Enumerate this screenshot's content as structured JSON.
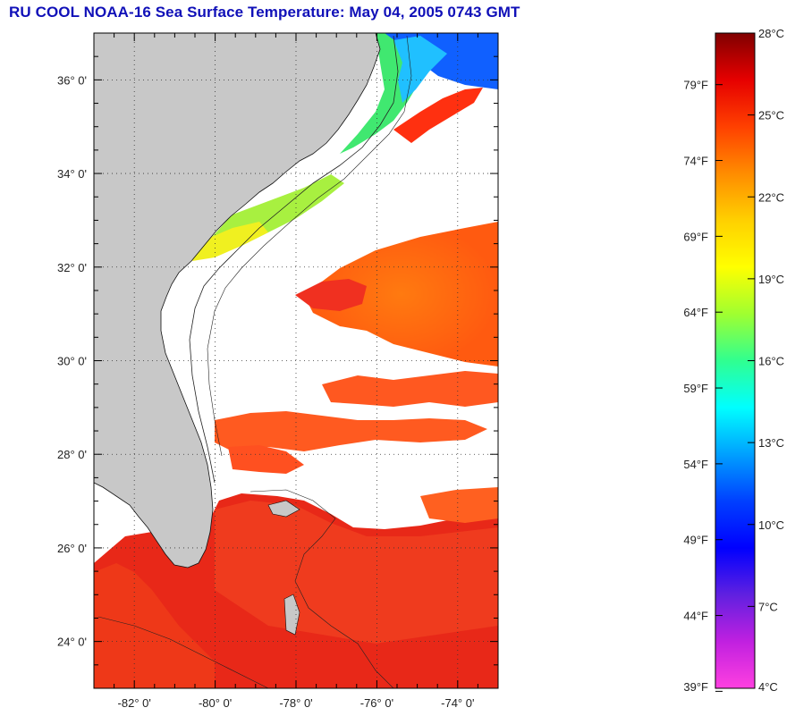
{
  "title": "RU COOL  NOAA-16  Sea Surface Temperature:  May 04, 2005 0743 GMT",
  "map": {
    "lon_range": [
      -83,
      -73
    ],
    "lat_range": [
      23,
      37
    ],
    "lat_ticks": [
      {
        "value": 36,
        "label": "36° 0'"
      },
      {
        "value": 34,
        "label": "34° 0'"
      },
      {
        "value": 32,
        "label": "32° 0'"
      },
      {
        "value": 30,
        "label": "30° 0'"
      },
      {
        "value": 28,
        "label": "28° 0'"
      },
      {
        "value": 26,
        "label": "26° 0'"
      },
      {
        "value": 24,
        "label": "24° 0'"
      }
    ],
    "lon_ticks": [
      {
        "value": -82,
        "label": "-82° 0'"
      },
      {
        "value": -80,
        "label": "-80° 0'"
      },
      {
        "value": -78,
        "label": "-78° 0'"
      },
      {
        "value": -76,
        "label": "-76° 0'"
      },
      {
        "value": -74,
        "label": "-74° 0'"
      }
    ],
    "grid": "dotted",
    "land_color": "#c8c8c8",
    "cloud_color": "#ffffff"
  },
  "colorbar": {
    "range_c": [
      4,
      28
    ],
    "celsius_ticks": [
      "28°C",
      "25°C",
      "22°C",
      "19°C",
      "16°C",
      "13°C",
      "10°C",
      "7°C",
      "4°C"
    ],
    "fahrenheit_ticks": [
      "79°F",
      "74°F",
      "69°F",
      "64°F",
      "59°F",
      "54°F",
      "49°F",
      "44°F",
      "39°F"
    ],
    "fahrenheit_values": [
      79,
      74,
      69,
      64,
      59,
      54,
      49,
      44,
      39
    ],
    "colors_top_to_bottom": [
      "#800000",
      "#e60000",
      "#ff4000",
      "#ff8c00",
      "#ffd000",
      "#ffff00",
      "#a0ff30",
      "#30ff90",
      "#00ffff",
      "#00a0ff",
      "#0040ff",
      "#0000ff",
      "#6020e0",
      "#c020e0",
      "#ff40e0"
    ]
  }
}
